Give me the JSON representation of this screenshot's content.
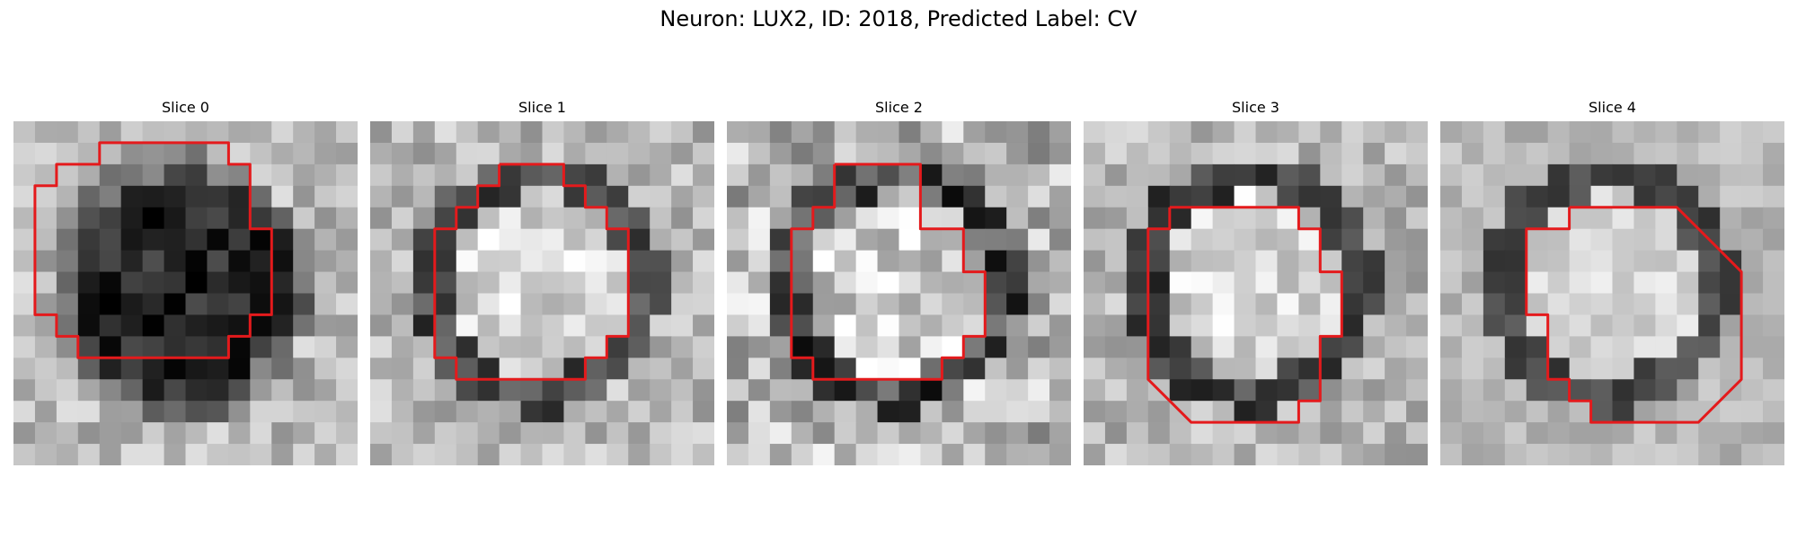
{
  "figure_title": "Neuron: LUX2, ID: 2018, Predicted Label: CV",
  "contour_color": "#e41a1c",
  "slices": [
    {
      "title": "Slice 0",
      "center": "dark",
      "ring": "none",
      "background_noise": "medium",
      "contour": [
        [
          5,
          1
        ],
        [
          10,
          1
        ],
        [
          10,
          2
        ],
        [
          11,
          2
        ],
        [
          11,
          3
        ],
        [
          11,
          4
        ],
        [
          11,
          5
        ],
        [
          12,
          5
        ],
        [
          12,
          6
        ],
        [
          12,
          7
        ],
        [
          12,
          8
        ],
        [
          12,
          9
        ],
        [
          11,
          9
        ],
        [
          11,
          10
        ],
        [
          10,
          10
        ],
        [
          10,
          11
        ],
        [
          3,
          11
        ],
        [
          3,
          10
        ],
        [
          2,
          10
        ],
        [
          2,
          9
        ],
        [
          1,
          9
        ],
        [
          1,
          8
        ],
        [
          1,
          7
        ],
        [
          1,
          6
        ],
        [
          1,
          5
        ],
        [
          1,
          4
        ],
        [
          1,
          3
        ],
        [
          2,
          3
        ],
        [
          2,
          2
        ],
        [
          3,
          2
        ],
        [
          4,
          2
        ],
        [
          4,
          1
        ],
        [
          5,
          1
        ]
      ]
    },
    {
      "title": "Slice 1",
      "center": "bright",
      "ring": "dark",
      "background_noise": "medium",
      "contour": [
        [
          6,
          2
        ],
        [
          9,
          2
        ],
        [
          9,
          3
        ],
        [
          10,
          3
        ],
        [
          10,
          4
        ],
        [
          11,
          4
        ],
        [
          11,
          5
        ],
        [
          12,
          5
        ],
        [
          12,
          6
        ],
        [
          12,
          7
        ],
        [
          12,
          8
        ],
        [
          12,
          9
        ],
        [
          12,
          10
        ],
        [
          11,
          10
        ],
        [
          11,
          11
        ],
        [
          10,
          11
        ],
        [
          10,
          12
        ],
        [
          4,
          12
        ],
        [
          4,
          11
        ],
        [
          3,
          11
        ],
        [
          3,
          10
        ],
        [
          3,
          9
        ],
        [
          3,
          8
        ],
        [
          3,
          7
        ],
        [
          3,
          6
        ],
        [
          3,
          5
        ],
        [
          4,
          5
        ],
        [
          4,
          4
        ],
        [
          5,
          4
        ],
        [
          5,
          3
        ],
        [
          6,
          3
        ],
        [
          6,
          2
        ]
      ]
    },
    {
      "title": "Slice 2",
      "center": "bright",
      "ring": "dark",
      "background_noise": "high",
      "contour": [
        [
          5,
          2
        ],
        [
          9,
          2
        ],
        [
          9,
          3
        ],
        [
          9,
          4
        ],
        [
          9,
          5
        ],
        [
          10,
          5
        ],
        [
          11,
          5
        ],
        [
          11,
          6
        ],
        [
          11,
          7
        ],
        [
          12,
          7
        ],
        [
          12,
          8
        ],
        [
          12,
          9
        ],
        [
          12,
          10
        ],
        [
          11,
          10
        ],
        [
          11,
          11
        ],
        [
          10,
          11
        ],
        [
          10,
          12
        ],
        [
          4,
          12
        ],
        [
          4,
          11
        ],
        [
          3,
          11
        ],
        [
          3,
          10
        ],
        [
          3,
          9
        ],
        [
          3,
          8
        ],
        [
          3,
          7
        ],
        [
          3,
          6
        ],
        [
          3,
          5
        ],
        [
          4,
          5
        ],
        [
          4,
          4
        ],
        [
          5,
          4
        ],
        [
          5,
          3
        ],
        [
          5,
          2
        ]
      ]
    },
    {
      "title": "Slice 3",
      "center": "bright",
      "ring": "dark",
      "background_noise": "medium",
      "contour": [
        [
          4,
          4
        ],
        [
          10,
          4
        ],
        [
          10,
          5
        ],
        [
          11,
          5
        ],
        [
          11,
          6
        ],
        [
          11,
          7
        ],
        [
          12,
          7
        ],
        [
          12,
          8
        ],
        [
          12,
          9
        ],
        [
          12,
          10
        ],
        [
          11,
          10
        ],
        [
          11,
          11
        ],
        [
          11,
          12
        ],
        [
          11,
          13
        ],
        [
          10,
          13
        ],
        [
          10,
          14
        ],
        [
          5,
          14
        ],
        [
          4,
          13
        ],
        [
          3,
          12
        ],
        [
          3,
          11
        ],
        [
          3,
          10
        ],
        [
          3,
          9
        ],
        [
          3,
          8
        ],
        [
          3,
          7
        ],
        [
          3,
          6
        ],
        [
          3,
          5
        ],
        [
          4,
          5
        ],
        [
          4,
          4
        ]
      ]
    },
    {
      "title": "Slice 4",
      "center": "bright",
      "ring": "dark",
      "background_noise": "low",
      "contour": [
        [
          6,
          4
        ],
        [
          11,
          4
        ],
        [
          12,
          5
        ],
        [
          13,
          6
        ],
        [
          14,
          7
        ],
        [
          14,
          8
        ],
        [
          14,
          9
        ],
        [
          14,
          10
        ],
        [
          14,
          11
        ],
        [
          14,
          12
        ],
        [
          13,
          13
        ],
        [
          12,
          14
        ],
        [
          7,
          14
        ],
        [
          7,
          13
        ],
        [
          6,
          13
        ],
        [
          6,
          12
        ],
        [
          5,
          12
        ],
        [
          5,
          11
        ],
        [
          5,
          10
        ],
        [
          5,
          9
        ],
        [
          4,
          9
        ],
        [
          4,
          8
        ],
        [
          4,
          7
        ],
        [
          4,
          6
        ],
        [
          4,
          5
        ],
        [
          5,
          5
        ],
        [
          6,
          5
        ],
        [
          6,
          4
        ]
      ]
    }
  ]
}
